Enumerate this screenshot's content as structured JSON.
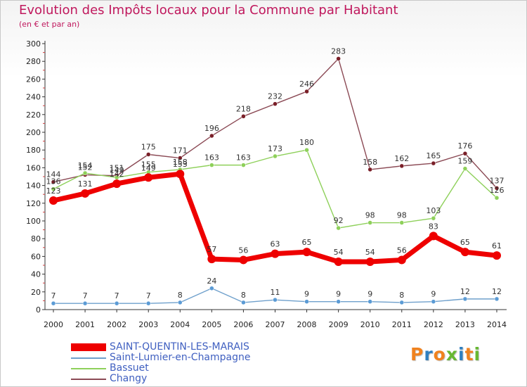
{
  "title": "Evolution des Impôts locaux pour la Commune par Habitant",
  "subtitle": "(en € et par an)",
  "logo": {
    "text": "Proxiti",
    "colors": [
      "#f0821e",
      "#2f7fc0",
      "#f0821e",
      "#67b832",
      "#2f7fc0",
      "#f0821e",
      "#67b832"
    ]
  },
  "chart_data": {
    "type": "line",
    "title": "Evolution des Impôts locaux pour la Commune par Habitant",
    "subtitle": "(en € et par an)",
    "xlabel": "",
    "ylabel": "",
    "x": [
      "2000",
      "2001",
      "2002",
      "2003",
      "2004",
      "2005",
      "2006",
      "2007",
      "2008",
      "2009",
      "2010",
      "2011",
      "2012",
      "2013",
      "2014"
    ],
    "ylim": [
      0,
      300
    ],
    "yticks": [
      0,
      20,
      40,
      60,
      80,
      100,
      120,
      140,
      160,
      180,
      200,
      220,
      240,
      260,
      280,
      300
    ],
    "grid": false,
    "legend_position": "bottom-left",
    "series": [
      {
        "name": "Changy",
        "color": "#7a1f28",
        "line_color": "#8b4a55",
        "values": [
          144,
          152,
          151,
          175,
          171,
          196,
          218,
          232,
          246,
          283,
          158,
          162,
          165,
          176,
          137
        ],
        "labels": [
          "144",
          "152",
          "151",
          "175",
          "171",
          "196",
          "218",
          "232",
          "246",
          "283",
          "158",
          "162",
          "165",
          "176",
          "137"
        ]
      },
      {
        "name": "Bassuet",
        "color": "#8ed05a",
        "line_color": "#8ed05a",
        "values": [
          136,
          154,
          149,
          155,
          158,
          163,
          163,
          173,
          180,
          92,
          98,
          98,
          103,
          159,
          126
        ],
        "labels": [
          "136",
          "154",
          "149",
          "155",
          "158",
          "163",
          "163",
          "173",
          "180",
          "92",
          "98",
          "98",
          "103",
          "159",
          "126"
        ]
      },
      {
        "name": "Saint-Lumier-en-Champagne",
        "color": "#5b9bd5",
        "line_color": "#6fa0cc",
        "values": [
          7,
          7,
          7,
          7,
          8,
          24,
          8,
          11,
          9,
          9,
          9,
          8,
          9,
          12,
          12
        ],
        "labels": [
          "7",
          "7",
          "7",
          "7",
          "8",
          "24",
          "8",
          "11",
          "9",
          "9",
          "9",
          "8",
          "9",
          "12",
          "12"
        ]
      },
      {
        "name": "SAINT-QUENTIN-LES-MARAIS",
        "color": "#ee0000",
        "line_color": "#ee0000",
        "values": [
          123,
          131,
          142,
          149,
          153,
          57,
          56,
          63,
          65,
          54,
          54,
          56,
          83,
          65,
          61
        ],
        "labels": [
          "123",
          "131",
          "142",
          "149",
          "153",
          "57",
          "56",
          "63",
          "65",
          "54",
          "54",
          "56",
          "83",
          "65",
          "61"
        ]
      }
    ],
    "legend": [
      "SAINT-QUENTIN-LES-MARAIS",
      "Saint-Lumier-en-Champagne",
      "Bassuet",
      "Changy"
    ]
  }
}
